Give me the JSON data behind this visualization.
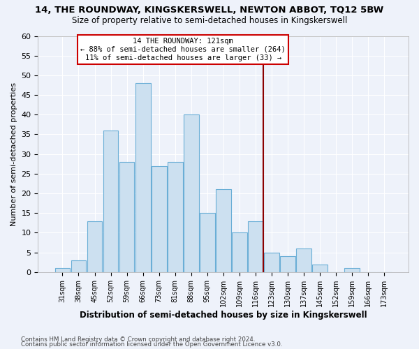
{
  "title": "14, THE ROUNDWAY, KINGSKERSWELL, NEWTON ABBOT, TQ12 5BW",
  "subtitle": "Size of property relative to semi-detached houses in Kingskerswell",
  "xlabel": "Distribution of semi-detached houses by size in Kingskerswell",
  "ylabel": "Number of semi-detached properties",
  "categories": [
    "31sqm",
    "38sqm",
    "45sqm",
    "52sqm",
    "59sqm",
    "66sqm",
    "73sqm",
    "81sqm",
    "88sqm",
    "95sqm",
    "102sqm",
    "109sqm",
    "116sqm",
    "123sqm",
    "130sqm",
    "137sqm",
    "145sqm",
    "152sqm",
    "159sqm",
    "166sqm",
    "173sqm"
  ],
  "values": [
    1,
    3,
    13,
    36,
    28,
    48,
    27,
    28,
    40,
    15,
    21,
    10,
    13,
    5,
    4,
    6,
    2,
    0,
    1,
    0,
    0
  ],
  "bar_color": "#cce0f0",
  "bar_edge_color": "#6aaed6",
  "vline_color": "#8b0000",
  "annotation_title": "14 THE ROUNDWAY: 121sqm",
  "annotation_line1": "← 88% of semi-detached houses are smaller (264)",
  "annotation_line2": "11% of semi-detached houses are larger (33) →",
  "annotation_box_color": "#ffffff",
  "annotation_box_edge": "#cc0000",
  "ylim": [
    0,
    60
  ],
  "yticks": [
    0,
    5,
    10,
    15,
    20,
    25,
    30,
    35,
    40,
    45,
    50,
    55,
    60
  ],
  "footer1": "Contains HM Land Registry data © Crown copyright and database right 2024.",
  "footer2": "Contains public sector information licensed under the Open Government Licence v3.0.",
  "bg_color": "#eef2fa",
  "plot_bg_color": "#eef2fa"
}
